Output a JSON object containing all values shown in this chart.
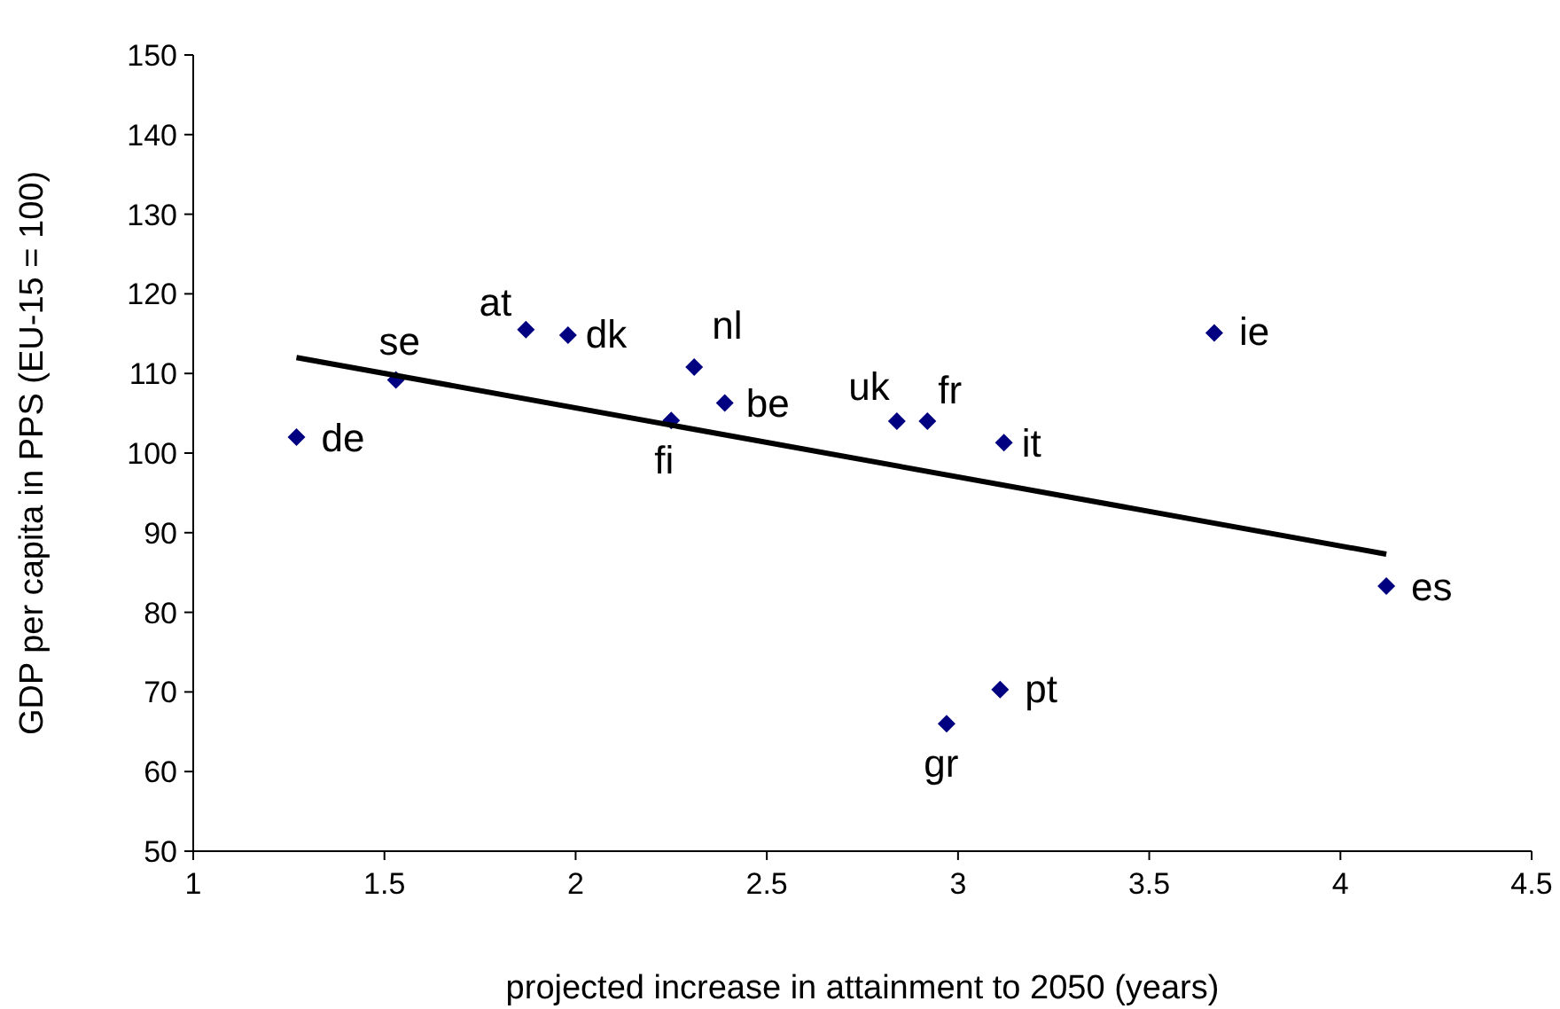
{
  "chart_data": {
    "type": "scatter",
    "xlabel": "projected increase in attainment to 2050 (years)",
    "ylabel": "GDP per capita in PPS (EU-15 = 100)",
    "xlim": [
      1,
      4.5
    ],
    "xticks": [
      1,
      1.5,
      2,
      2.5,
      3,
      3.5,
      4,
      4.5
    ],
    "ylim": [
      50,
      150
    ],
    "yticks": [
      50,
      60,
      70,
      80,
      90,
      100,
      110,
      120,
      130,
      140,
      150
    ],
    "grid": false,
    "series": [
      {
        "color": "#000080",
        "marker": "diamond",
        "x": [
          1.27,
          1.53,
          1.87,
          1.98,
          2.31,
          2.25,
          2.39,
          2.84,
          2.92,
          3.12,
          3.67,
          4.12,
          3.11,
          2.97
        ],
        "values": [
          102.0,
          109.2,
          115.5,
          114.8,
          110.8,
          104.1,
          106.3,
          104.0,
          104.0,
          101.3,
          115.1,
          83.3,
          70.3,
          66.0
        ]
      },
      {
        "type": "line",
        "color": "#000000",
        "marker": "none",
        "line_style": "solid",
        "x": [
          1.27,
          4.12
        ],
        "values": [
          112.0,
          87.3
        ]
      }
    ],
    "annotations": [
      {
        "text": "de",
        "x": 1.27,
        "y": 102.0
      },
      {
        "text": "se",
        "x": 1.53,
        "y": 109.2
      },
      {
        "text": "at",
        "x": 1.87,
        "y": 115.5
      },
      {
        "text": "dk",
        "x": 1.98,
        "y": 114.8
      },
      {
        "text": "nl",
        "x": 2.31,
        "y": 110.8
      },
      {
        "text": "fi",
        "x": 2.25,
        "y": 104.1
      },
      {
        "text": "be",
        "x": 2.39,
        "y": 106.3
      },
      {
        "text": "uk",
        "x": 2.84,
        "y": 104.0
      },
      {
        "text": "fr",
        "x": 2.92,
        "y": 104.0
      },
      {
        "text": "it",
        "x": 3.12,
        "y": 101.3
      },
      {
        "text": "ie",
        "x": 3.67,
        "y": 115.1
      },
      {
        "text": "es",
        "x": 4.12,
        "y": 83.3
      },
      {
        "text": "pt",
        "x": 3.11,
        "y": 70.3
      },
      {
        "text": "gr",
        "x": 2.97,
        "y": 66.0
      }
    ]
  }
}
